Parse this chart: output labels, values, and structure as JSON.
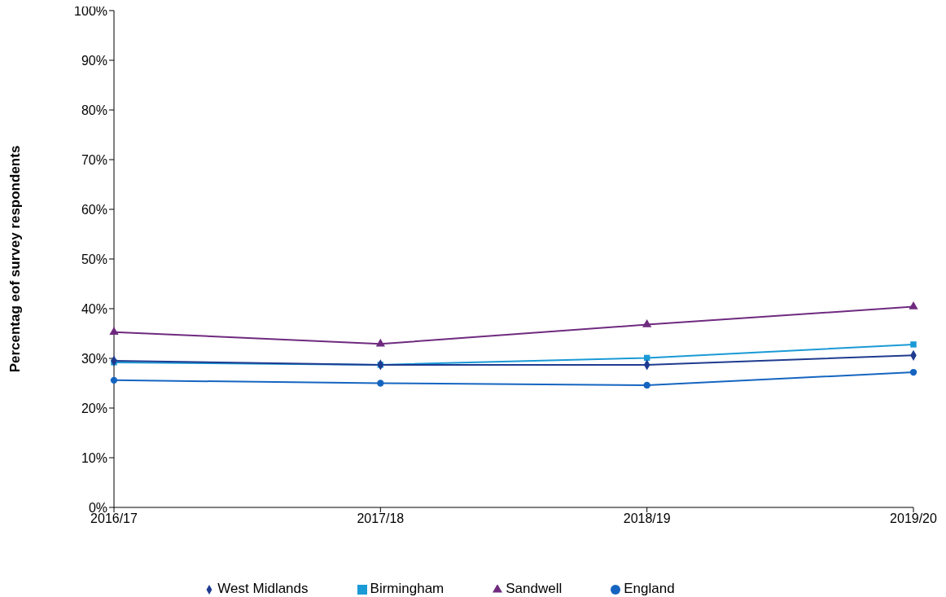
{
  "chart_data": {
    "type": "line",
    "ylabel": "Percentag eof survey respondents",
    "categories": [
      "2016/17",
      "2017/18",
      "2018/19",
      "2019/20"
    ],
    "series": [
      {
        "name": "West Midlands",
        "color": "#1f3b8f",
        "marker": "diamond",
        "values": [
          29.5,
          28.7,
          28.7,
          30.6
        ]
      },
      {
        "name": "Birmingham",
        "color": "#1a9ad6",
        "marker": "square",
        "values": [
          29.2,
          28.7,
          30.1,
          32.8
        ]
      },
      {
        "name": "Sandwell",
        "color": "#6f2a7f",
        "marker": "triangle",
        "values": [
          35.3,
          32.9,
          36.8,
          40.4
        ]
      },
      {
        "name": "England",
        "color": "#1565c0",
        "marker": "circle",
        "values": [
          25.6,
          25.0,
          24.6,
          27.2
        ]
      }
    ],
    "ylim": [
      0,
      100
    ],
    "yticks": [
      {
        "value": 0,
        "label": "0%"
      },
      {
        "value": 10,
        "label": "10%"
      },
      {
        "value": 20,
        "label": "20%"
      },
      {
        "value": 30,
        "label": "30%"
      },
      {
        "value": 40,
        "label": "40%"
      },
      {
        "value": 50,
        "label": "50%"
      },
      {
        "value": 60,
        "label": "60%"
      },
      {
        "value": 70,
        "label": "70%"
      },
      {
        "value": 80,
        "label": "80%"
      },
      {
        "value": 90,
        "label": "90%"
      },
      {
        "value": 100,
        "label": "100%"
      }
    ],
    "grid": false,
    "legend": "bottom"
  }
}
